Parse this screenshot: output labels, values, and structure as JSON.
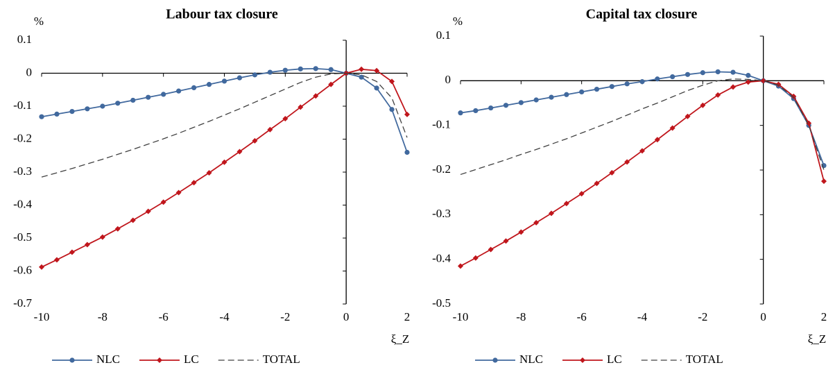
{
  "chart_data": [
    {
      "type": "line",
      "title": "Labour tax closure",
      "y_label": "%",
      "x_label": "ξ_Z",
      "x": [
        -10,
        -9.5,
        -9,
        -8.5,
        -8,
        -7.5,
        -7,
        -6.5,
        -6,
        -5.5,
        -5,
        -4.5,
        -4,
        -3.5,
        -3,
        -2.5,
        -2,
        -1.5,
        -1,
        -0.5,
        0,
        0.5,
        1,
        1.5,
        2
      ],
      "series": [
        {
          "name": "NLC",
          "color": "#41699e",
          "marker": "circle",
          "values": [
            -0.132,
            -0.124,
            -0.116,
            -0.108,
            -0.1,
            -0.091,
            -0.082,
            -0.073,
            -0.064,
            -0.054,
            -0.044,
            -0.034,
            -0.024,
            -0.014,
            -0.005,
            0.003,
            0.009,
            0.013,
            0.014,
            0.011,
            0,
            -0.012,
            -0.045,
            -0.11,
            -0.24
          ]
        },
        {
          "name": "LC",
          "color": "#c0161c",
          "marker": "diamond",
          "values": [
            -0.588,
            -0.566,
            -0.543,
            -0.52,
            -0.497,
            -0.472,
            -0.446,
            -0.419,
            -0.391,
            -0.362,
            -0.332,
            -0.302,
            -0.27,
            -0.238,
            -0.205,
            -0.171,
            -0.138,
            -0.103,
            -0.069,
            -0.034,
            0,
            0.012,
            0.008,
            -0.025,
            -0.125
          ]
        },
        {
          "name": "TOTAL",
          "color": "#404040",
          "dash": true,
          "values": [
            -0.315,
            -0.302,
            -0.289,
            -0.275,
            -0.261,
            -0.246,
            -0.231,
            -0.215,
            -0.199,
            -0.182,
            -0.164,
            -0.146,
            -0.127,
            -0.108,
            -0.088,
            -0.068,
            -0.048,
            -0.028,
            -0.012,
            -0.002,
            0,
            -0.005,
            -0.025,
            -0.075,
            -0.195
          ]
        }
      ],
      "xlim": [
        -10,
        2
      ],
      "xticks": [
        -10,
        -8,
        -6,
        -4,
        -2,
        0,
        2
      ],
      "ylim": [
        -0.7,
        0.1
      ],
      "yticks": [
        -0.7,
        -0.6,
        -0.5,
        -0.4,
        -0.3,
        -0.2,
        -0.1,
        0,
        0.1
      ]
    },
    {
      "type": "line",
      "title": "Capital tax closure",
      "y_label": "%",
      "x_label": "ξ_Z",
      "x": [
        -10,
        -9.5,
        -9,
        -8.5,
        -8,
        -7.5,
        -7,
        -6.5,
        -6,
        -5.5,
        -5,
        -4.5,
        -4,
        -3.5,
        -3,
        -2.5,
        -2,
        -1.5,
        -1,
        -0.5,
        0,
        0.5,
        1,
        1.5,
        2
      ],
      "series": [
        {
          "name": "NLC",
          "color": "#41699e",
          "marker": "circle",
          "values": [
            -0.072,
            -0.067,
            -0.061,
            -0.055,
            -0.049,
            -0.043,
            -0.037,
            -0.031,
            -0.025,
            -0.019,
            -0.013,
            -0.007,
            -0.002,
            0.004,
            0.009,
            0.014,
            0.018,
            0.02,
            0.019,
            0.012,
            0,
            -0.012,
            -0.04,
            -0.1,
            -0.19
          ]
        },
        {
          "name": "LC",
          "color": "#c0161c",
          "marker": "diamond",
          "values": [
            -0.415,
            -0.397,
            -0.378,
            -0.359,
            -0.339,
            -0.318,
            -0.297,
            -0.275,
            -0.253,
            -0.23,
            -0.206,
            -0.182,
            -0.157,
            -0.132,
            -0.106,
            -0.08,
            -0.055,
            -0.032,
            -0.014,
            -0.003,
            0,
            -0.008,
            -0.035,
            -0.095,
            -0.225
          ]
        },
        {
          "name": "TOTAL",
          "color": "#404040",
          "dash": true,
          "values": [
            -0.21,
            -0.199,
            -0.188,
            -0.177,
            -0.165,
            -0.154,
            -0.142,
            -0.13,
            -0.117,
            -0.104,
            -0.091,
            -0.077,
            -0.063,
            -0.05,
            -0.036,
            -0.022,
            -0.01,
            0,
            0.004,
            0.003,
            0,
            -0.01,
            -0.037,
            -0.1,
            -0.2
          ]
        }
      ],
      "xlim": [
        -10,
        2
      ],
      "xticks": [
        -10,
        -8,
        -6,
        -4,
        -2,
        0,
        2
      ],
      "ylim": [
        -0.5,
        0.1
      ],
      "yticks": [
        -0.5,
        -0.4,
        -0.3,
        -0.2,
        -0.1,
        0,
        0.1
      ]
    }
  ]
}
